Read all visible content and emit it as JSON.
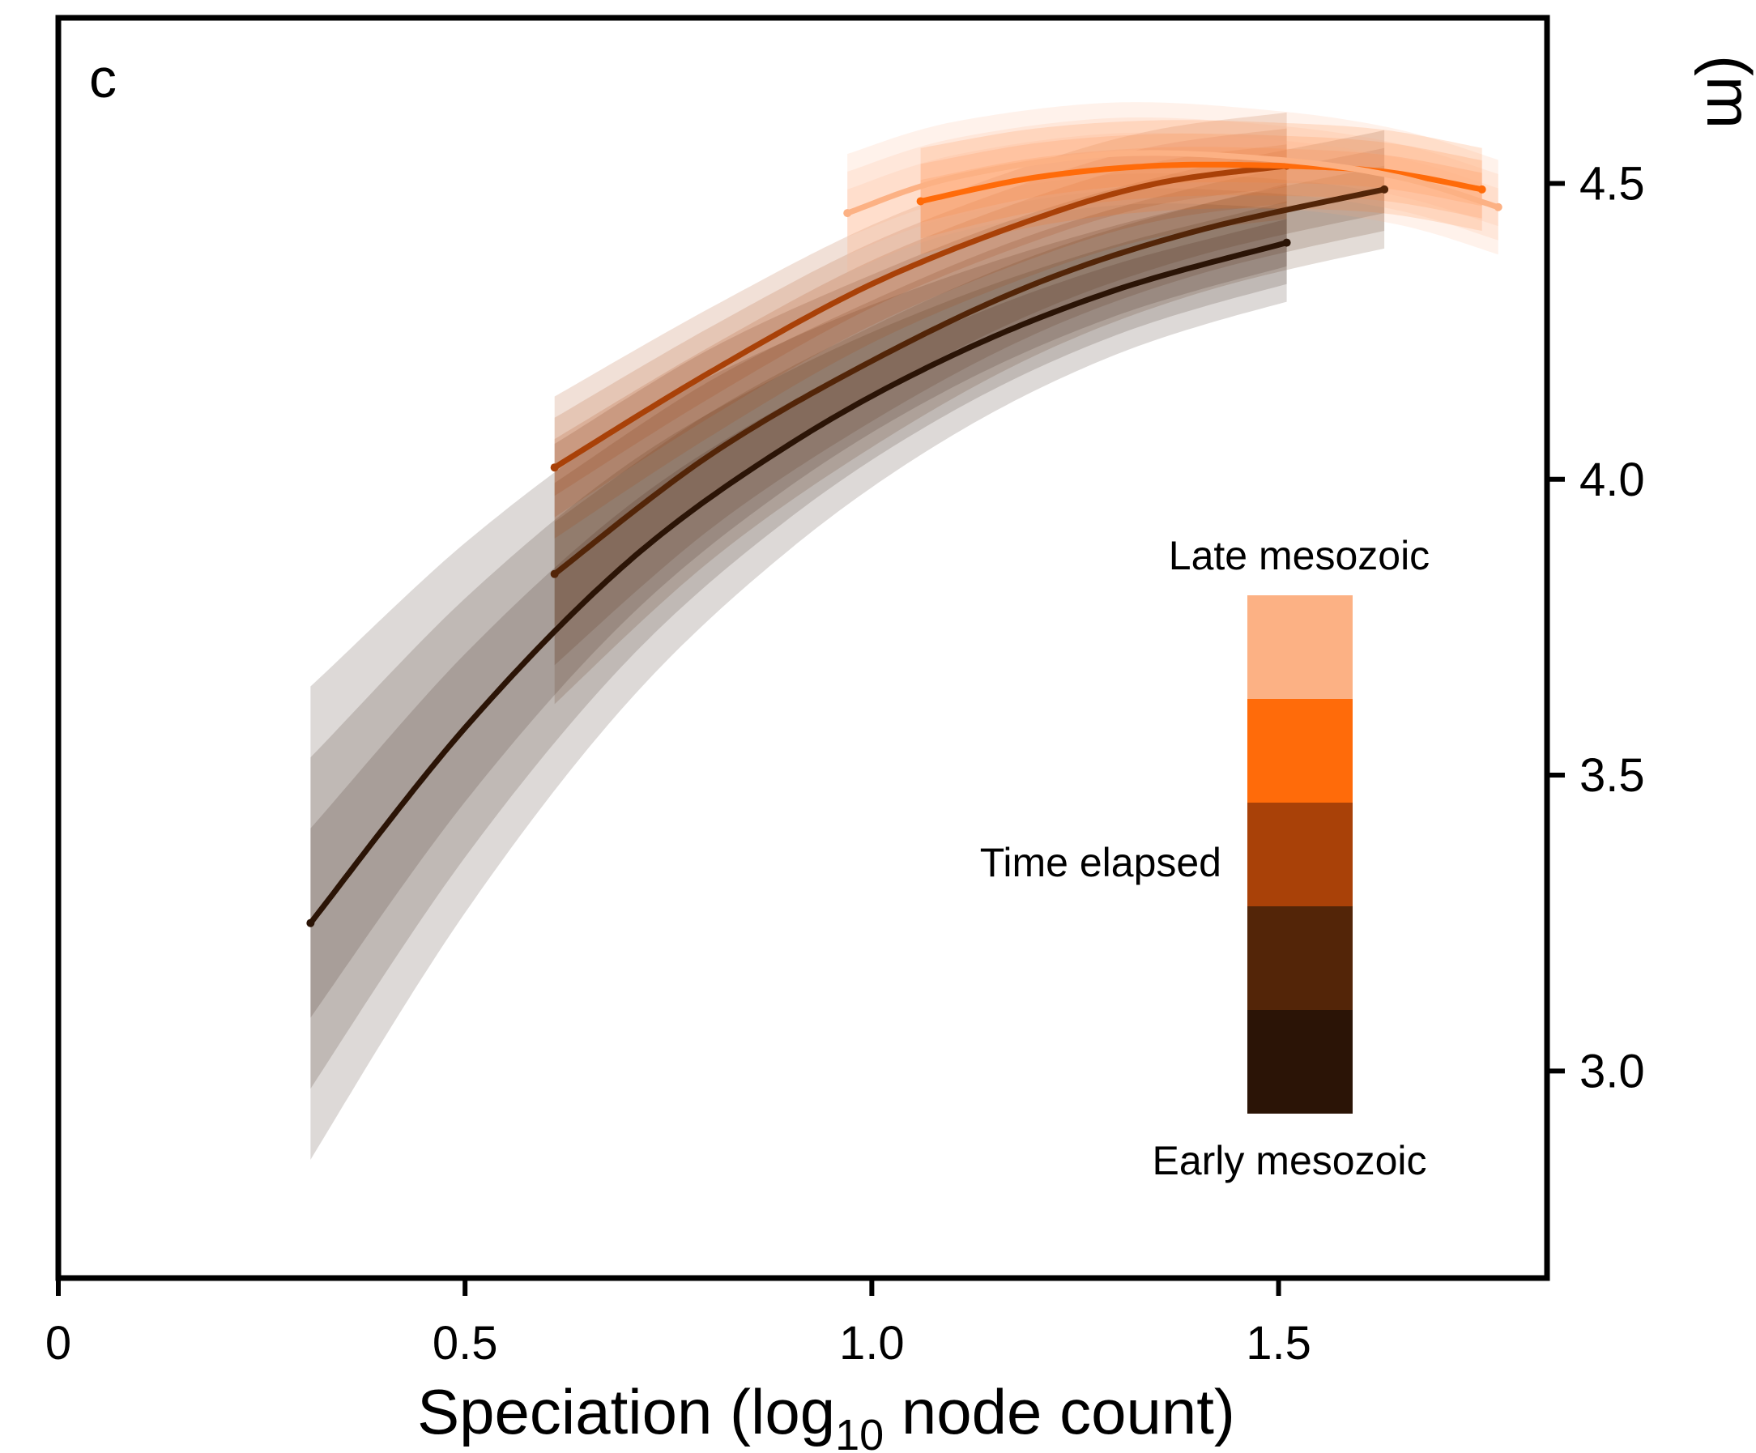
{
  "chart_data": {
    "type": "line",
    "panel_label": "c",
    "xlabel_main": "Speciation (log",
    "xlabel_sub": "10",
    "xlabel_tail": " node count)",
    "ylabel_fragment": "(m",
    "xlim": [
      0,
      1.83
    ],
    "ylim": [
      2.65,
      4.78
    ],
    "xticks": [
      {
        "value": 0,
        "label": "0"
      },
      {
        "value": 0.5,
        "label": "0.5"
      },
      {
        "value": 1.0,
        "label": "1.0"
      },
      {
        "value": 1.5,
        "label": "1.5"
      }
    ],
    "yticks": [
      {
        "value": 3.0,
        "label": "3.0"
      },
      {
        "value": 3.5,
        "label": "3.5"
      },
      {
        "value": 4.0,
        "label": "4.0"
      },
      {
        "value": 4.5,
        "label": "4.5"
      }
    ],
    "series": [
      {
        "color": "#2b1406",
        "x_start": 0.31,
        "y_start": 3.25,
        "x_end": 1.51,
        "y_end": 4.4,
        "points": [
          [
            0.31,
            3.25
          ],
          [
            0.5,
            3.58
          ],
          [
            0.7,
            3.86
          ],
          [
            0.9,
            4.06
          ],
          [
            1.1,
            4.21
          ],
          [
            1.3,
            4.32
          ],
          [
            1.51,
            4.4
          ]
        ],
        "band": [
          0.1,
          0.4
        ]
      },
      {
        "color": "#532508",
        "x_start": 0.61,
        "y_start": 3.84,
        "x_end": 1.63,
        "y_end": 4.49,
        "points": [
          [
            0.61,
            3.84
          ],
          [
            0.8,
            4.04
          ],
          [
            1.0,
            4.2
          ],
          [
            1.2,
            4.33
          ],
          [
            1.4,
            4.42
          ],
          [
            1.63,
            4.49
          ]
        ],
        "band": [
          0.1,
          0.22
        ]
      },
      {
        "color": "#a94108",
        "x_start": 0.61,
        "y_start": 4.02,
        "x_end": 1.51,
        "y_end": 4.53,
        "points": [
          [
            0.61,
            4.02
          ],
          [
            0.8,
            4.18
          ],
          [
            1.0,
            4.33
          ],
          [
            1.2,
            4.44
          ],
          [
            1.35,
            4.5
          ],
          [
            1.51,
            4.53
          ]
        ],
        "band": [
          0.09,
          0.12
        ]
      },
      {
        "color": "#ff6b0a",
        "x_start": 1.06,
        "y_start": 4.47,
        "x_end": 1.75,
        "y_end": 4.49,
        "points": [
          [
            1.06,
            4.47
          ],
          [
            1.2,
            4.51
          ],
          [
            1.35,
            4.53
          ],
          [
            1.5,
            4.53
          ],
          [
            1.63,
            4.52
          ],
          [
            1.75,
            4.49
          ]
        ],
        "band": [
          0.07,
          0.09
        ]
      },
      {
        "color": "#fcb184",
        "x_start": 0.97,
        "y_start": 4.45,
        "x_end": 1.77,
        "y_end": 4.46,
        "points": [
          [
            0.97,
            4.45
          ],
          [
            1.1,
            4.51
          ],
          [
            1.3,
            4.55
          ],
          [
            1.5,
            4.54
          ],
          [
            1.65,
            4.51
          ],
          [
            1.77,
            4.46
          ]
        ],
        "band": [
          0.08,
          0.1
        ]
      }
    ],
    "colorbar": {
      "top_label": "Late mesozoic",
      "middle_label": "Time elapsed",
      "bottom_label": "Early mesozoic",
      "colors": [
        "#fcb184",
        "#ff6b0a",
        "#a94108",
        "#532508",
        "#2b1406"
      ]
    }
  }
}
